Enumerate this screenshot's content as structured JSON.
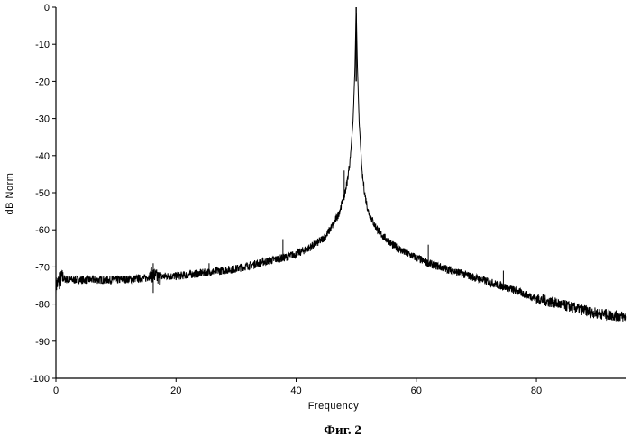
{
  "chart_data": {
    "type": "line",
    "title": "",
    "xlabel": "Frequency",
    "ylabel": "dB Norm",
    "xlim": [
      0,
      95
    ],
    "ylim": [
      -100,
      0
    ],
    "x_ticks": [
      0,
      20,
      40,
      60,
      80
    ],
    "x_tick_labels": [
      "0",
      "20",
      "40",
      "60",
      "80"
    ],
    "y_ticks": [
      0,
      -10,
      -20,
      -30,
      -40,
      -50,
      -60,
      -70,
      -80,
      -90,
      -100
    ],
    "y_tick_labels": [
      "0",
      "-10",
      "-20",
      "-30",
      "-40",
      "-50",
      "-60",
      "-70",
      "-80",
      "-90",
      "-100"
    ],
    "grid": false,
    "legend": "none",
    "line_color": "#000000",
    "series": [
      {
        "x": [
          0,
          0.5,
          1,
          2,
          5,
          10,
          15,
          16,
          17,
          18,
          20,
          25,
          30,
          35,
          38,
          40,
          42,
          44,
          45,
          46,
          47,
          48,
          48.5,
          49,
          49.5,
          49.8,
          50,
          50.2,
          50.5,
          51,
          51.5,
          52,
          53,
          54,
          55,
          56,
          58,
          60,
          62,
          65,
          70,
          75,
          80,
          85,
          90,
          95
        ],
        "y": [
          -75,
          -74,
          -73,
          -73.5,
          -73.5,
          -73.5,
          -73,
          -72,
          -73,
          -72.5,
          -72.5,
          -71.5,
          -70.5,
          -68.5,
          -67.5,
          -66.5,
          -65,
          -63,
          -61.5,
          -59,
          -56,
          -51,
          -47,
          -41,
          -30,
          -16,
          0,
          -16,
          -31,
          -45,
          -51,
          -55,
          -58.5,
          -61,
          -62.5,
          -64,
          -66,
          -67.5,
          -69,
          -70.5,
          -73,
          -75.5,
          -78.5,
          -80.5,
          -82.5,
          -83.5
        ]
      }
    ],
    "spikes": [
      {
        "x": 16.2,
        "y_range": [
          -77,
          -69
        ]
      },
      {
        "x": 25.5,
        "y_range": [
          -72,
          -69
        ]
      },
      {
        "x": 37.8,
        "y_range": [
          -68,
          -62.5
        ]
      },
      {
        "x": 48.0,
        "y_range": [
          -52,
          -44
        ]
      },
      {
        "x": 62.0,
        "y_range": [
          -69,
          -64
        ]
      },
      {
        "x": 74.5,
        "y_range": [
          -76,
          -71
        ]
      }
    ]
  },
  "caption": "Фиг. 2"
}
